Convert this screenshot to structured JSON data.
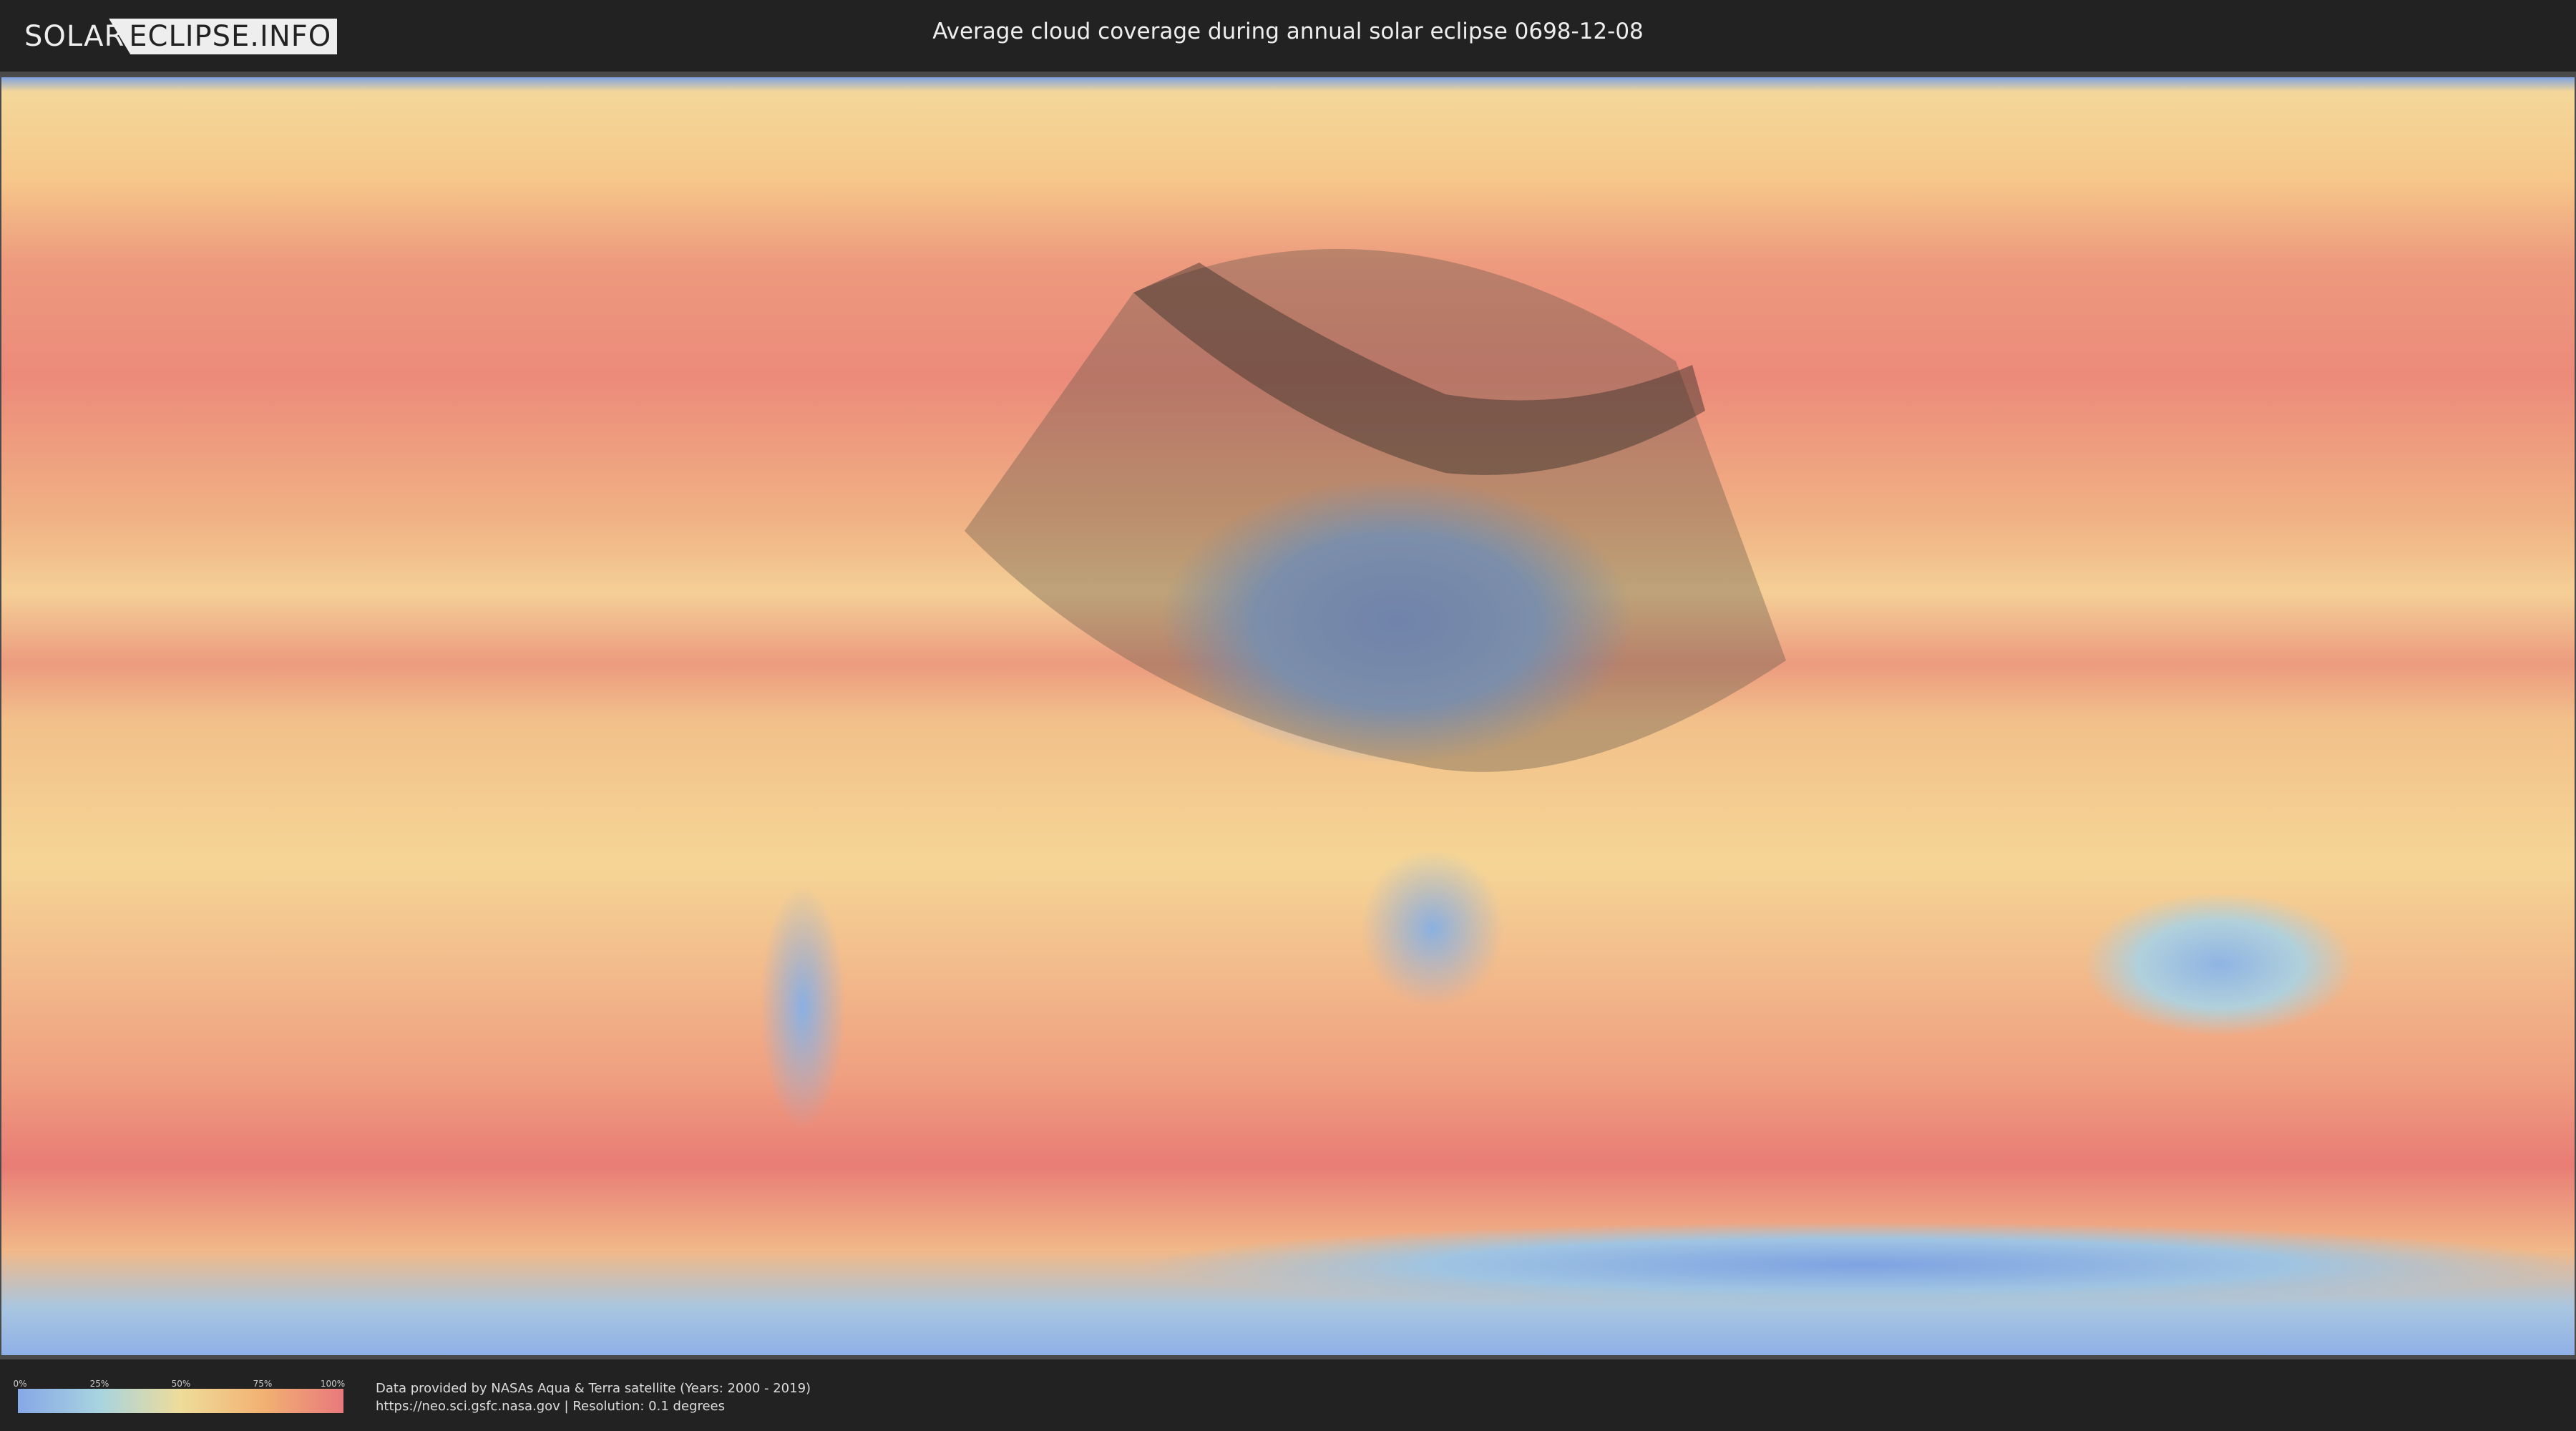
{
  "header": {
    "logo_left": "SOLAR",
    "logo_right": "ECLIPSE.INFO",
    "title": "Average cloud coverage during annual solar eclipse 0698-12-08"
  },
  "legend": {
    "ticks": [
      "0%",
      "25%",
      "50%",
      "75%",
      "100%"
    ],
    "colors": [
      "#86a8e6",
      "#a8d3e0",
      "#eedc9a",
      "#f2b272",
      "#e8797c"
    ]
  },
  "footer": {
    "credit_line1": "Data provided by NASAs Aqua & Terra satellite (Years: 2000 - 2019)",
    "credit_line2": "https://neo.sci.gsfc.nasa.gov | Resolution: 0.1 degrees"
  }
}
